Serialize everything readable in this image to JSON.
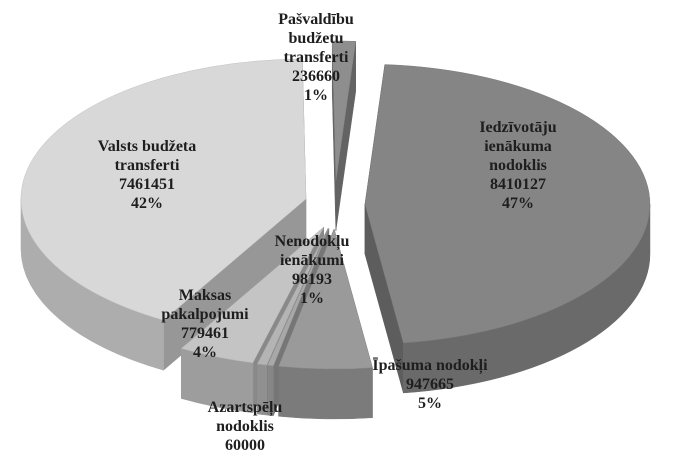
{
  "chart_data": {
    "type": "pie",
    "three_d": true,
    "exploded": true,
    "categories": [
      "Iedzīvotāju ienākuma nodoklis",
      "Īpašuma nodokļi",
      "Azartspēļu nodoklis",
      "Nenodokļu ienākumi",
      "Maksas pakalpojumi",
      "Valsts budžeta transferti",
      "Pašvaldību budžetu transferti"
    ],
    "values": [
      8410127,
      947665,
      60000,
      98193,
      779461,
      7461451,
      236660
    ],
    "percent_labels": [
      "47%",
      "5%",
      null,
      "1%",
      "4%",
      "42%",
      "1%"
    ],
    "colors": [
      "#858585",
      "#9a9a9a",
      "#a8a8a8",
      "#b4b4b4",
      "#c4c4c4",
      "#d8d8d8",
      "#8e8e8e"
    ]
  }
}
